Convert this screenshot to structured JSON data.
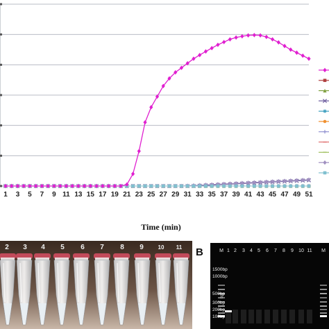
{
  "chart_data": {
    "type": "line",
    "xlabel": "Time (min)",
    "x_tick_labels": [
      "1",
      "3",
      "5",
      "7",
      "9",
      "11",
      "13",
      "15",
      "17",
      "19",
      "21",
      "23",
      "25",
      "27",
      "29",
      "31",
      "33",
      "35",
      "37",
      "39",
      "41",
      "43",
      "45",
      "47",
      "49",
      "51"
    ],
    "x": [
      1,
      2,
      3,
      4,
      5,
      6,
      7,
      8,
      9,
      10,
      11,
      12,
      13,
      14,
      15,
      16,
      17,
      18,
      19,
      20,
      21,
      22,
      23,
      24,
      25,
      26,
      27,
      28,
      29,
      30,
      31,
      32,
      33,
      34,
      35,
      36,
      37,
      38,
      39,
      40,
      41,
      42,
      43,
      44,
      45,
      46,
      47,
      48,
      49,
      50,
      51
    ],
    "ylim": [
      0,
      6
    ],
    "grid": true,
    "legend_position": "right",
    "series": [
      {
        "color": "#e020d0",
        "marker": "diamond",
        "values": [
          0,
          0,
          0,
          0,
          0,
          0,
          0,
          0,
          0,
          0,
          0,
          0,
          0,
          0,
          0,
          0,
          0,
          0,
          0,
          0,
          0.05,
          0.4,
          1.15,
          2.1,
          2.6,
          2.95,
          3.3,
          3.55,
          3.75,
          3.9,
          4.05,
          4.2,
          4.32,
          4.44,
          4.55,
          4.66,
          4.75,
          4.84,
          4.9,
          4.94,
          4.97,
          4.98,
          4.97,
          4.92,
          4.84,
          4.74,
          4.62,
          4.5,
          4.4,
          4.3,
          4.2
        ]
      },
      {
        "color": "#b04040",
        "marker": "square",
        "values": [
          0,
          0,
          0,
          0,
          0,
          0,
          0,
          0,
          0,
          0,
          0,
          0,
          0,
          0,
          0,
          0,
          0,
          0,
          0,
          0,
          0,
          0,
          0,
          0,
          0,
          0,
          0,
          0,
          0,
          0,
          0,
          0,
          0,
          0,
          0,
          0,
          0,
          0,
          0,
          0,
          0,
          0,
          0,
          0,
          0,
          0,
          0,
          0,
          0,
          0,
          0
        ]
      },
      {
        "color": "#80a040",
        "marker": "triangle",
        "values": [
          0,
          0,
          0,
          0,
          0,
          0,
          0,
          0,
          0,
          0,
          0,
          0,
          0,
          0,
          0,
          0,
          0,
          0,
          0,
          0,
          0,
          0,
          0,
          0,
          0,
          0,
          0,
          0,
          0,
          0,
          0,
          0,
          0,
          0,
          0,
          0,
          0,
          0,
          0,
          0,
          0,
          0,
          0,
          0,
          0,
          0,
          0,
          0,
          0,
          0,
          0
        ]
      },
      {
        "color": "#7060a0",
        "marker": "x",
        "values": [
          0,
          0,
          0,
          0,
          0,
          0,
          0,
          0,
          0,
          0,
          0,
          0,
          0,
          0,
          0,
          0,
          0,
          0,
          0,
          0,
          0,
          0,
          0,
          0,
          0,
          0,
          0,
          0,
          0,
          0,
          0,
          0,
          0.01,
          0.02,
          0.03,
          0.04,
          0.05,
          0.06,
          0.07,
          0.08,
          0.09,
          0.1,
          0.11,
          0.12,
          0.13,
          0.14,
          0.15,
          0.16,
          0.17,
          0.18,
          0.19
        ]
      },
      {
        "color": "#40a0c0",
        "marker": "star",
        "values": [
          0,
          0,
          0,
          0,
          0,
          0,
          0,
          0,
          0,
          0,
          0,
          0,
          0,
          0,
          0,
          0,
          0,
          0,
          0,
          0,
          0,
          0,
          0,
          0,
          0,
          0,
          0,
          0,
          0,
          0,
          0,
          0,
          0,
          0,
          0,
          0,
          0,
          0,
          0,
          0,
          0,
          0,
          0,
          0,
          0,
          0,
          0,
          0,
          0,
          0,
          0
        ]
      },
      {
        "color": "#f09030",
        "marker": "circle",
        "values": [
          0,
          0,
          0,
          0,
          0,
          0,
          0,
          0,
          0,
          0,
          0,
          0,
          0,
          0,
          0,
          0,
          0,
          0,
          0,
          0,
          0,
          0,
          0,
          0,
          0,
          0,
          0,
          0,
          0,
          0,
          0,
          0,
          0,
          0,
          0,
          0,
          0,
          0,
          0,
          0,
          0,
          0,
          0,
          0,
          0,
          0,
          0,
          0,
          0,
          0,
          0
        ]
      },
      {
        "color": "#9090d0",
        "marker": "plus",
        "values": [
          0,
          0,
          0,
          0,
          0,
          0,
          0,
          0,
          0,
          0,
          0,
          0,
          0,
          0,
          0,
          0,
          0,
          0,
          0,
          0,
          0,
          0,
          0,
          0,
          0,
          0,
          0,
          0,
          0,
          0,
          0,
          0,
          0,
          0,
          0,
          0,
          0,
          0,
          0,
          0,
          0,
          0,
          0,
          0,
          0,
          0,
          0,
          0,
          0,
          0,
          0
        ]
      },
      {
        "color": "#e07070",
        "marker": "dash",
        "values": [
          0,
          0,
          0,
          0,
          0,
          0,
          0,
          0,
          0,
          0,
          0,
          0,
          0,
          0,
          0,
          0,
          0,
          0,
          0,
          0,
          0,
          0,
          0,
          0,
          0,
          0,
          0,
          0,
          0,
          0,
          0,
          0,
          0,
          0,
          0,
          0,
          0,
          0,
          0,
          0,
          0,
          0,
          0,
          0,
          0,
          0,
          0,
          0,
          0,
          0,
          0
        ]
      },
      {
        "color": "#a0c060",
        "marker": "dash",
        "values": [
          0,
          0,
          0,
          0,
          0,
          0,
          0,
          0,
          0,
          0,
          0,
          0,
          0,
          0,
          0,
          0,
          0,
          0,
          0,
          0,
          0,
          0,
          0,
          0,
          0,
          0,
          0,
          0,
          0,
          0,
          0,
          0,
          0,
          0,
          0,
          0,
          0,
          0,
          0,
          0,
          0,
          0,
          0,
          0,
          0,
          0,
          0,
          0,
          0,
          0,
          0
        ]
      },
      {
        "color": "#a090c0",
        "marker": "diamond",
        "values": [
          0,
          0,
          0,
          0,
          0,
          0,
          0,
          0,
          0,
          0,
          0,
          0,
          0,
          0,
          0,
          0,
          0,
          0,
          0,
          0,
          0,
          0,
          0,
          0,
          0,
          0,
          0,
          0,
          0,
          0,
          0.01,
          0.02,
          0.03,
          0.04,
          0.05,
          0.06,
          0.07,
          0.08,
          0.09,
          0.1,
          0.11,
          0.12,
          0.13,
          0.14,
          0.15,
          0.16,
          0.17,
          0.18,
          0.19,
          0.2,
          0.21
        ]
      },
      {
        "color": "#80c0d0",
        "marker": "square",
        "values": [
          0,
          0,
          0,
          0,
          0,
          0,
          0,
          0,
          0,
          0,
          0,
          0,
          0,
          0,
          0,
          0,
          0,
          0,
          0,
          0,
          0,
          0,
          0,
          0,
          0,
          0,
          0,
          0,
          0,
          0,
          0,
          0,
          0,
          0,
          0,
          0,
          0,
          0,
          0,
          0,
          0,
          0,
          0,
          0,
          0,
          0,
          0,
          0,
          0,
          0,
          0
        ]
      }
    ]
  },
  "panel_a": {
    "tube_labels": [
      "2",
      "3",
      "4",
      "5",
      "6",
      "7",
      "8",
      "9",
      "10",
      "11"
    ]
  },
  "panel_b": {
    "letter": "B",
    "lane_labels": [
      "M",
      "1",
      "2",
      "3",
      "4",
      "5",
      "6",
      "7",
      "8",
      "9",
      "10",
      "11",
      "M"
    ],
    "ladder_labels": [
      "1500bp",
      "1000bp",
      "500bp",
      "300bp",
      "200bp",
      "100bp"
    ],
    "side_label": "bp"
  }
}
